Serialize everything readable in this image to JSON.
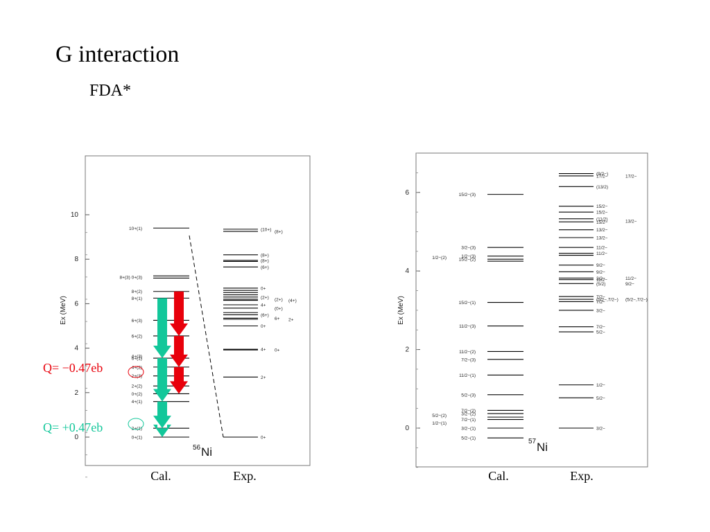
{
  "title": "G interaction",
  "subtitle": "FDA*",
  "chart_data": [
    {
      "type": "level-scheme",
      "nucleus_mass": "56",
      "nucleus_symbol": "Ni",
      "ylabel": "Ex (MeV)",
      "ylim": [
        -1.8,
        10
      ],
      "yticks": [
        0,
        2,
        4,
        6,
        8,
        10
      ],
      "columns": [
        "Cal.",
        "Exp."
      ],
      "cal_levels": [
        {
          "e": 9.4,
          "label": "10+(1)",
          "side": "left"
        },
        {
          "e": 7.25,
          "label": "",
          "side": "left"
        },
        {
          "e": 7.15,
          "label": "",
          "side": "left"
        },
        {
          "e": 6.55,
          "label": "8+(2)",
          "side": "left"
        },
        {
          "e": 6.25,
          "label": "8+(1)",
          "side": "left"
        },
        {
          "e": 5.25,
          "label": "6+(3)",
          "side": "left"
        },
        {
          "e": 4.55,
          "label": "6+(2)",
          "side": "left"
        },
        {
          "e": 3.55,
          "label": "6+(1)",
          "side": "left"
        },
        {
          "e": 3.15,
          "label": "4+(2)",
          "side": "left"
        },
        {
          "e": 2.75,
          "label": "2+(3)",
          "side": "left"
        },
        {
          "e": 2.3,
          "label": "2+(2)",
          "side": "left"
        },
        {
          "e": 1.95,
          "label": "0+(2)",
          "side": "left"
        },
        {
          "e": 1.6,
          "label": "4+(1)",
          "side": "left"
        },
        {
          "e": 0.4,
          "label": "2+(1)",
          "side": "left"
        },
        {
          "e": 0.0,
          "label": "0+(1)",
          "side": "left"
        }
      ],
      "cal_extra_labels": [
        {
          "e": 7.2,
          "label": "8+(3) 0+(3)"
        },
        {
          "e": 3.65,
          "label": "4+(3)"
        }
      ],
      "exp_levels": [
        {
          "e": 9.35,
          "label": "(10+)"
        },
        {
          "e": 9.25,
          "label": "(8+)"
        },
        {
          "e": 8.2,
          "label": "(8+)"
        },
        {
          "e": 7.95,
          "label": "(8+)"
        },
        {
          "e": 7.9,
          "label": ""
        },
        {
          "e": 7.65,
          "label": "(6+)"
        },
        {
          "e": 6.7,
          "label": "0+"
        },
        {
          "e": 6.6,
          "label": ""
        },
        {
          "e": 6.5,
          "label": ""
        },
        {
          "e": 6.4,
          "label": ""
        },
        {
          "e": 6.3,
          "label": "(2+)"
        },
        {
          "e": 6.2,
          "label": "(2+)"
        },
        {
          "e": 6.15,
          "label": "(4+)"
        },
        {
          "e": 5.95,
          "label": "4+"
        },
        {
          "e": 5.8,
          "label": "(0+)"
        },
        {
          "e": 5.6,
          "label": ""
        },
        {
          "e": 5.5,
          "label": "(6+)"
        },
        {
          "e": 5.35,
          "label": "6+"
        },
        {
          "e": 5.3,
          "label": "2+"
        },
        {
          "e": 5.0,
          "label": "0+"
        },
        {
          "e": 3.95,
          "label": "4+"
        },
        {
          "e": 3.92,
          "label": "0+"
        },
        {
          "e": 2.7,
          "label": "2+"
        },
        {
          "e": 0.0,
          "label": "0+"
        }
      ],
      "annotations": [
        {
          "text": "Q= −0.47eb",
          "color": "#e8000b"
        },
        {
          "text": "Q= +0.47eb",
          "color": "#12c79a"
        }
      ],
      "arrows": [
        {
          "color": "#12c79a",
          "from": 6.25,
          "to": 3.55
        },
        {
          "color": "#12c79a",
          "from": 3.55,
          "to": 1.6
        },
        {
          "color": "#12c79a",
          "from": 1.6,
          "to": 0.4
        },
        {
          "color": "#12c79a",
          "from": 0.4,
          "to": 0.0
        },
        {
          "color": "#e8000b",
          "from": 6.55,
          "to": 4.55
        },
        {
          "color": "#e8000b",
          "from": 4.55,
          "to": 3.15
        },
        {
          "color": "#e8000b",
          "from": 3.15,
          "to": 1.95
        }
      ]
    },
    {
      "type": "level-scheme",
      "nucleus_mass": "57",
      "nucleus_symbol": "Ni",
      "ylabel": "Ex (MeV)",
      "ylim": [
        -1.0,
        7.0
      ],
      "yticks": [
        0,
        2,
        4,
        6
      ],
      "columns": [
        "Cal.",
        "Exp."
      ],
      "cal_levels": [
        {
          "e": 5.95,
          "label": "15/2−(3)"
        },
        {
          "e": 4.6,
          "label": "3/2−(3)"
        },
        {
          "e": 4.38,
          "label": "1/2−(3)"
        },
        {
          "e": 4.3,
          "label": "15/2−(2)"
        },
        {
          "e": 4.25,
          "label": ""
        },
        {
          "e": 3.2,
          "label": "15/2−(1)"
        },
        {
          "e": 2.6,
          "label": "11/2−(3)"
        },
        {
          "e": 1.95,
          "label": "11/2−(2)"
        },
        {
          "e": 1.75,
          "label": "7/2−(3)"
        },
        {
          "e": 1.35,
          "label": "11/2−(1)"
        },
        {
          "e": 0.85,
          "label": "5/2−(3)"
        },
        {
          "e": 0.45,
          "label": "7/2−(2)"
        },
        {
          "e": 0.37,
          "label": "3/2−(2)"
        },
        {
          "e": 0.28,
          "label": ""
        },
        {
          "e": 0.22,
          "label": "7/2−(1)"
        },
        {
          "e": 0.0,
          "label": "3/2−(1)"
        },
        {
          "e": -0.25,
          "label": "5/2−(1)"
        }
      ],
      "cal_left_labels": [
        {
          "e": 4.35,
          "label": "1/2−(2)"
        },
        {
          "e": 0.33,
          "label": "5/2−(2)"
        },
        {
          "e": 0.13,
          "label": "1/2−(1)"
        }
      ],
      "exp_levels": [
        {
          "e": 6.48,
          "label": "(9/2−)"
        },
        {
          "e": 6.42,
          "label": "17/2−"
        },
        {
          "e": 6.15,
          "label": "(13/2)"
        },
        {
          "e": 5.65,
          "label": "15/2−"
        },
        {
          "e": 5.5,
          "label": "15/2−"
        },
        {
          "e": 5.33,
          "label": "(11/2)"
        },
        {
          "e": 5.25,
          "label": "15/2−"
        },
        {
          "e": 5.05,
          "label": "13/2−"
        },
        {
          "e": 4.85,
          "label": "13/2−"
        },
        {
          "e": 4.6,
          "label": "11/2−"
        },
        {
          "e": 4.45,
          "label": "11/2−"
        },
        {
          "e": 4.4,
          "label": ""
        },
        {
          "e": 4.15,
          "label": "9/2−"
        },
        {
          "e": 3.98,
          "label": "9/2−"
        },
        {
          "e": 3.82,
          "label": "3/2−"
        },
        {
          "e": 3.78,
          "label": "11/2−"
        },
        {
          "e": 3.68,
          "label": "(5/2)"
        },
        {
          "e": 3.35,
          "label": "7/2−"
        },
        {
          "e": 3.28,
          "label": "(5/2−,7/2−)"
        },
        {
          "e": 3.22,
          "label": "7/2−"
        },
        {
          "e": 3.0,
          "label": "3/2−"
        },
        {
          "e": 2.58,
          "label": "7/2−"
        },
        {
          "e": 2.45,
          "label": "5/2−"
        },
        {
          "e": 1.1,
          "label": "1/2−"
        },
        {
          "e": 0.77,
          "label": "5/2−"
        },
        {
          "e": 0.0,
          "label": "3/2−"
        }
      ],
      "exp_side_labels": [
        {
          "e": 6.42,
          "label": "17/2−"
        },
        {
          "e": 5.27,
          "label": "13/2−"
        },
        {
          "e": 3.82,
          "label": "11/2−"
        },
        {
          "e": 3.68,
          "label": "9/2−"
        },
        {
          "e": 3.28,
          "label": "(5/2−,7/2−)"
        }
      ]
    }
  ]
}
